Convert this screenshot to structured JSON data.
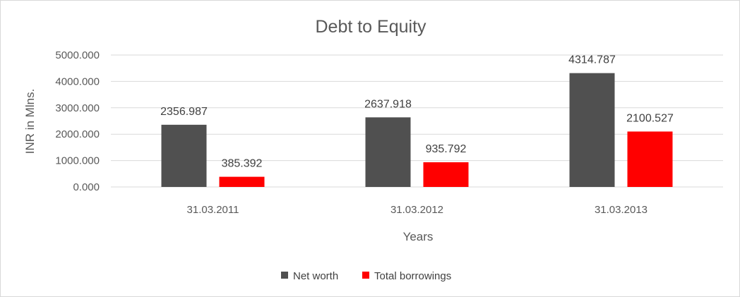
{
  "chart_data": {
    "type": "bar",
    "title": "Debt to Equity",
    "xlabel": "Years",
    "ylabel": "INR in Mlns.",
    "categories": [
      "31.03.2011",
      "31.03.2012",
      "31.03.2013"
    ],
    "series": [
      {
        "name": "Net worth",
        "values": [
          2356.987,
          2637.918,
          4314.787
        ],
        "color": "#505050",
        "labels": [
          "2356.987",
          "2637.918",
          "4314.787"
        ]
      },
      {
        "name": "Total borrowings",
        "values": [
          385.392,
          935.792,
          2100.527
        ],
        "color": "#ff0000",
        "labels": [
          "385.392",
          "935.792",
          "2100.527"
        ]
      }
    ],
    "ylim": [
      0,
      5000
    ],
    "yticks": [
      0,
      1000,
      2000,
      3000,
      4000,
      5000
    ],
    "ytick_labels": [
      "0.000",
      "1000.000",
      "2000.000",
      "3000.000",
      "4000.000",
      "5000.000"
    ],
    "grid": true,
    "legend_position": "bottom"
  }
}
